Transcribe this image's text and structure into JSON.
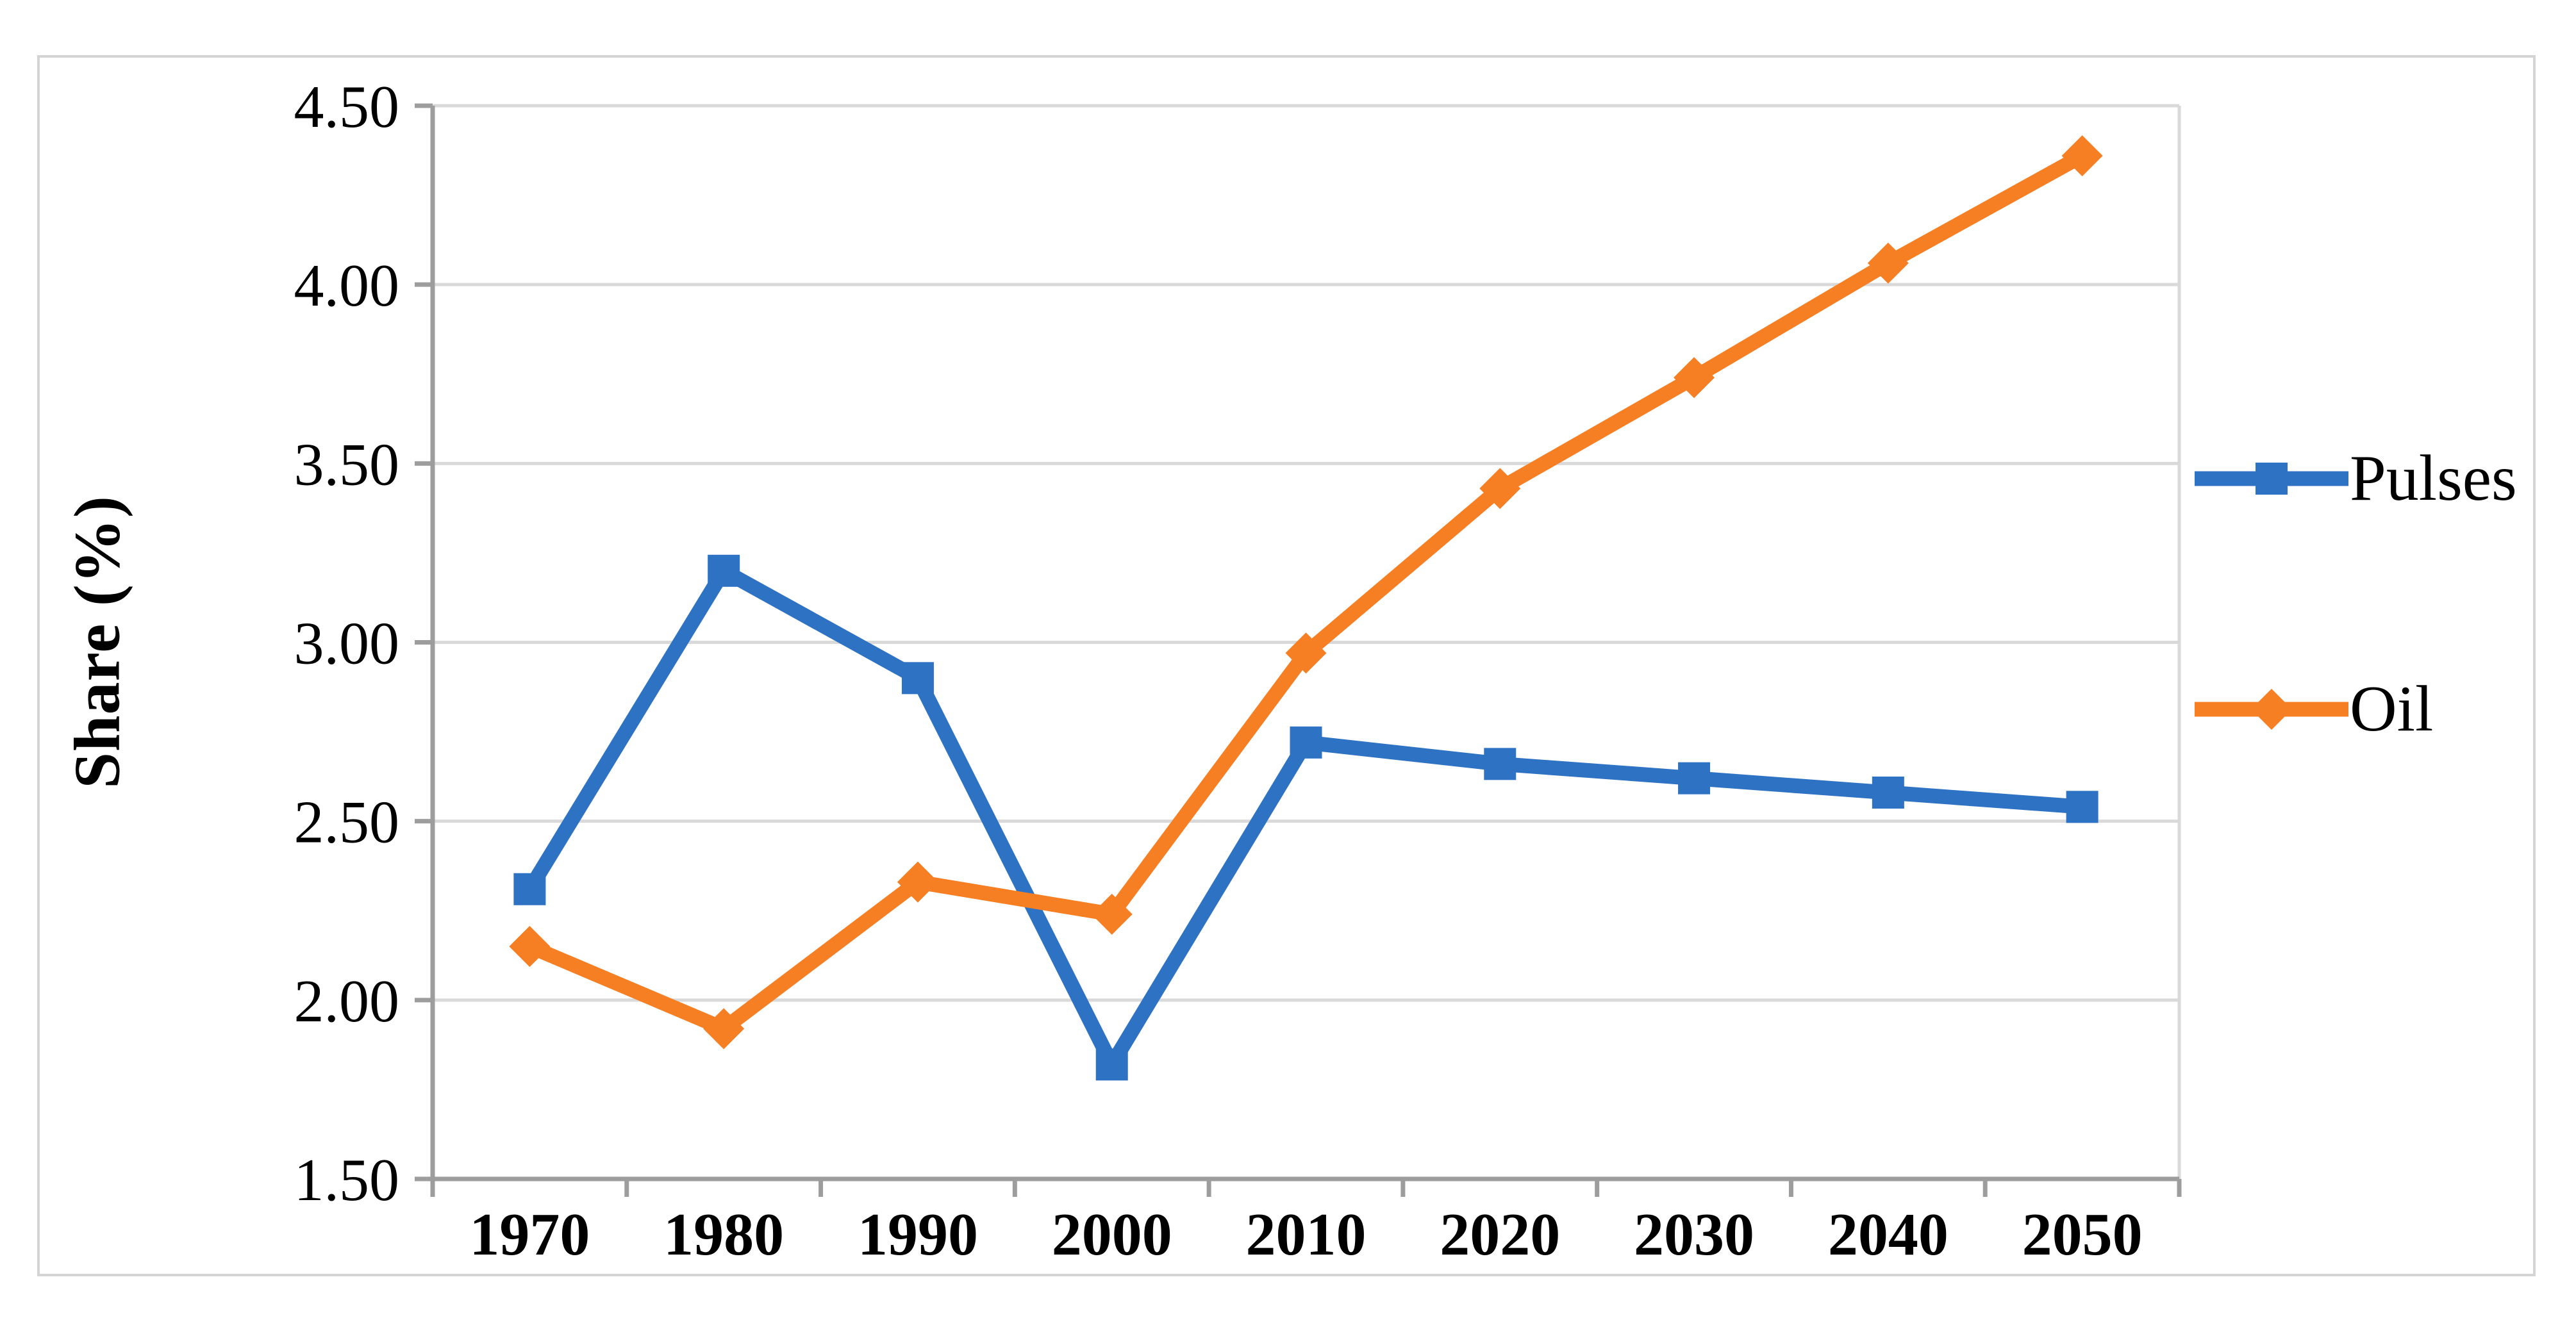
{
  "figure": {
    "background_color": "#ffffff",
    "border_color": "#d4d4d4"
  },
  "chart_data": {
    "type": "line",
    "title": "",
    "xlabel": "",
    "ylabel": "Share (%)",
    "categories": [
      "1970",
      "1980",
      "1990",
      "2000",
      "2010",
      "2020",
      "2030",
      "2040",
      "2050"
    ],
    "series": [
      {
        "name": "Pulses",
        "color": "#2e72c4",
        "marker": "square",
        "values": [
          2.31,
          3.2,
          2.9,
          1.82,
          2.72,
          2.66,
          2.62,
          2.58,
          2.54
        ]
      },
      {
        "name": "Oil",
        "color": "#f67e23",
        "marker": "diamond",
        "values": [
          2.15,
          1.92,
          2.33,
          2.24,
          2.97,
          3.43,
          3.74,
          4.06,
          4.36
        ]
      }
    ],
    "ylim": [
      1.5,
      4.5
    ],
    "y_tick_step": 0.5,
    "y_tick_labels": [
      "1.50",
      "2.00",
      "2.50",
      "3.00",
      "3.50",
      "4.00",
      "4.50"
    ],
    "grid": "horizontal gridlines on, right boundary line on",
    "gridline_color": "#d9d9d9",
    "axis_color": "#9d9d9d",
    "text_color": "#000000",
    "legend_position": "right"
  }
}
